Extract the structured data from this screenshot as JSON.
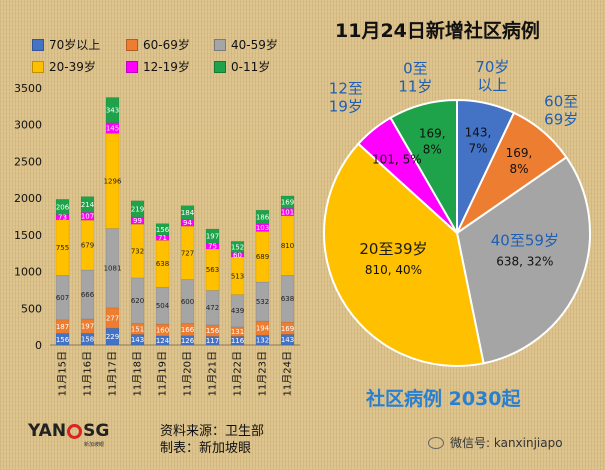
{
  "legend": [
    {
      "label": "70岁以上",
      "color": "#4472c4"
    },
    {
      "label": "60-69岁",
      "color": "#ed7d31"
    },
    {
      "label": "40-59岁",
      "color": "#a5a5a5"
    },
    {
      "label": "20-39岁",
      "color": "#ffc000"
    },
    {
      "label": "12-19岁",
      "color": "#ff00ff"
    },
    {
      "label": "0-11岁",
      "color": "#1ea34a"
    }
  ],
  "pie_title": "11月24日新增社区病例",
  "pie_subtitle": "社区病例 2030起",
  "source_line1": "资料来源：卫生部",
  "source_line2": "制表：新加坡眼",
  "logo_text": "YAN SG",
  "logo_subtext": "新加坡眼",
  "wechat": "微信号: kanxinjiapo",
  "chart_data": [
    {
      "type": "bar",
      "stacked": true,
      "categories": [
        "11月15日",
        "11月16日",
        "11月17日",
        "11月18日",
        "11月19日",
        "11月20日",
        "11月21日",
        "11月22日",
        "11月23日",
        "11月24日"
      ],
      "yticks": [
        "0",
        "500",
        "1000",
        "1500",
        "2000",
        "2500",
        "3000",
        "3500"
      ],
      "ylim": [
        0,
        3500
      ],
      "series": [
        {
          "name": "70岁以上",
          "color": "#4472c4",
          "values": [
            156,
            158,
            229,
            143,
            124,
            126,
            117,
            116,
            132,
            143
          ]
        },
        {
          "name": "60-69岁",
          "color": "#ed7d31",
          "values": [
            187,
            197,
            277,
            151,
            160,
            166,
            156,
            131,
            194,
            169
          ]
        },
        {
          "name": "40-59岁",
          "color": "#a5a5a5",
          "values": [
            607,
            666,
            1081,
            620,
            504,
            600,
            472,
            439,
            532,
            638
          ]
        },
        {
          "name": "20-39岁",
          "color": "#ffc000",
          "values": [
            755,
            679,
            1296,
            732,
            638,
            727,
            563,
            513,
            689,
            810
          ]
        },
        {
          "name": "12-19岁",
          "color": "#ff00ff",
          "values": [
            73,
            107,
            145,
            99,
            71,
            94,
            75,
            60,
            103,
            101
          ]
        },
        {
          "name": "0-11岁",
          "color": "#1ea34a",
          "values": [
            206,
            214,
            343,
            219,
            156,
            184,
            197,
            152,
            186,
            169
          ]
        }
      ]
    },
    {
      "type": "pie",
      "title": "11月24日新增社区病例",
      "slices": [
        {
          "name": "70岁以上",
          "value": 143,
          "pct": "7%",
          "color": "#4472c4",
          "label": "143,\n7%",
          "cat": "70岁\n以上"
        },
        {
          "name": "60至69岁",
          "value": 169,
          "pct": "8%",
          "color": "#ed7d31",
          "label": "169,\n8%",
          "cat": "60至\n69岁"
        },
        {
          "name": "40至59岁",
          "value": 638,
          "pct": "32%",
          "color": "#a5a5a5",
          "label": "638, 32%",
          "cat": "40至59岁"
        },
        {
          "name": "20至39岁",
          "value": 810,
          "pct": "40%",
          "color": "#ffc000",
          "label": "810, 40%",
          "cat": "20至39岁"
        },
        {
          "name": "12至19岁",
          "value": 101,
          "pct": "5%",
          "color": "#ff00ff",
          "label": "101, 5%",
          "cat": "12至\n19岁"
        },
        {
          "name": "0至11岁",
          "value": 169,
          "pct": "8%",
          "color": "#1ea34a",
          "label": "169,\n8%",
          "cat": "0至\n11岁"
        }
      ]
    }
  ]
}
